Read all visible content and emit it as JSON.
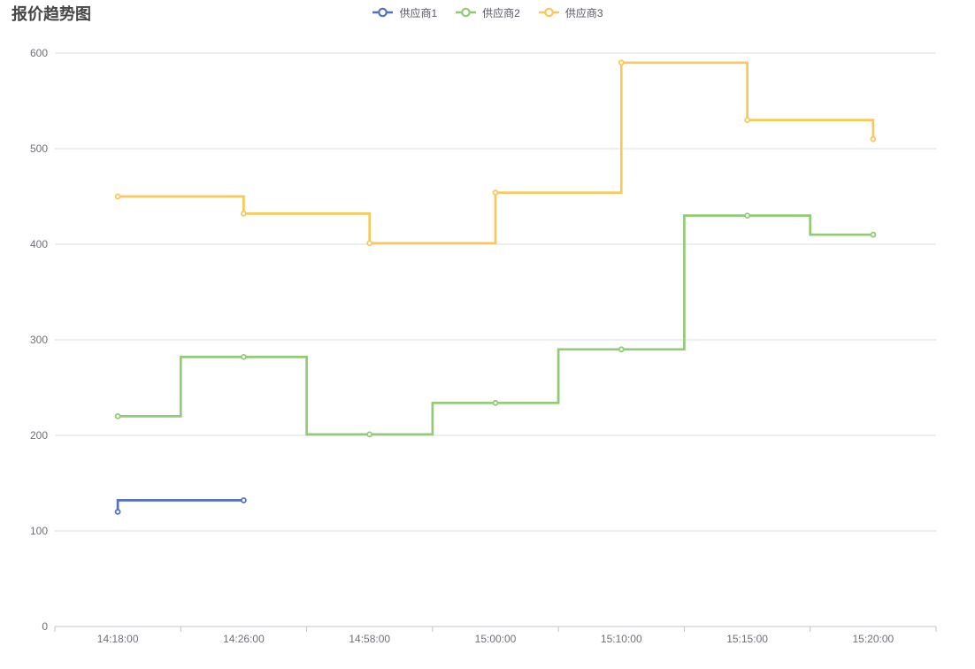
{
  "title": "报价趋势图",
  "legend": {
    "position": "top-center",
    "items": [
      {
        "label": "供应商1",
        "color": "#5470c6",
        "marker": "line-circle-icon"
      },
      {
        "label": "供应商2",
        "color": "#91cc75",
        "marker": "line-circle-icon"
      },
      {
        "label": "供应商3",
        "color": "#fac858",
        "marker": "line-circle-icon"
      }
    ]
  },
  "chart_data": {
    "type": "line",
    "variant": "step-line",
    "title": "报价趋势图",
    "categories": [
      "14:18:00",
      "14:26:00",
      "14:58:00",
      "15:00:00",
      "15:10:00",
      "15:15:00",
      "15:20:00"
    ],
    "series": [
      {
        "name": "供应商1",
        "color": "#5470c6",
        "step": "start",
        "values": [
          120,
          132,
          null,
          null,
          null,
          null,
          null
        ]
      },
      {
        "name": "供应商2",
        "color": "#91cc75",
        "step": "middle",
        "values": [
          220,
          282,
          201,
          234,
          290,
          430,
          410
        ]
      },
      {
        "name": "供应商3",
        "color": "#fac858",
        "step": "end",
        "values": [
          450,
          432,
          401,
          454,
          590,
          530,
          510
        ]
      }
    ],
    "xlabel": "",
    "ylabel": "",
    "ylim": [
      0,
      600
    ],
    "y_ticks": [
      0,
      100,
      200,
      300,
      400,
      500,
      600
    ],
    "grid": true,
    "legend_position": "top-center",
    "symbol": "empty-circle"
  },
  "colors": {
    "background": "#ffffff",
    "title_text": "#464646",
    "axis_label": "#6e7079",
    "axis_line": "#c0c4cc",
    "grid_line": "#d8dce5",
    "legend_text": "#545760"
  }
}
